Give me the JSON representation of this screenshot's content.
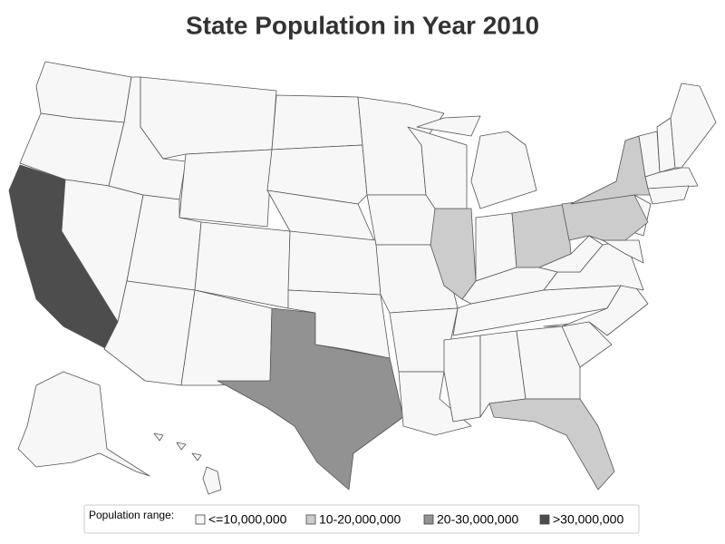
{
  "title": "State Population in Year 2010",
  "legend": {
    "title": "Population range:",
    "items": [
      {
        "label": "<=10,000,000",
        "color": "#f7f7f7"
      },
      {
        "label": "10-20,000,000",
        "color": "#cccccc"
      },
      {
        "label": "20-30,000,000",
        "color": "#929292"
      },
      {
        "label": ">30,000,000",
        "color": "#4d4d4d"
      }
    ]
  },
  "map": {
    "regions": [
      0,
      0,
      3,
      0,
      0,
      0,
      0,
      0,
      0,
      0,
      0,
      0,
      0,
      0,
      0,
      2,
      0,
      0,
      0,
      0,
      0,
      0,
      1,
      0,
      0,
      0,
      1,
      0,
      0,
      0,
      0,
      0,
      0,
      1,
      0,
      0,
      0,
      0,
      0,
      1,
      1,
      0,
      0,
      0,
      0,
      0,
      0,
      0,
      0,
      0,
      0,
      0
    ]
  }
}
